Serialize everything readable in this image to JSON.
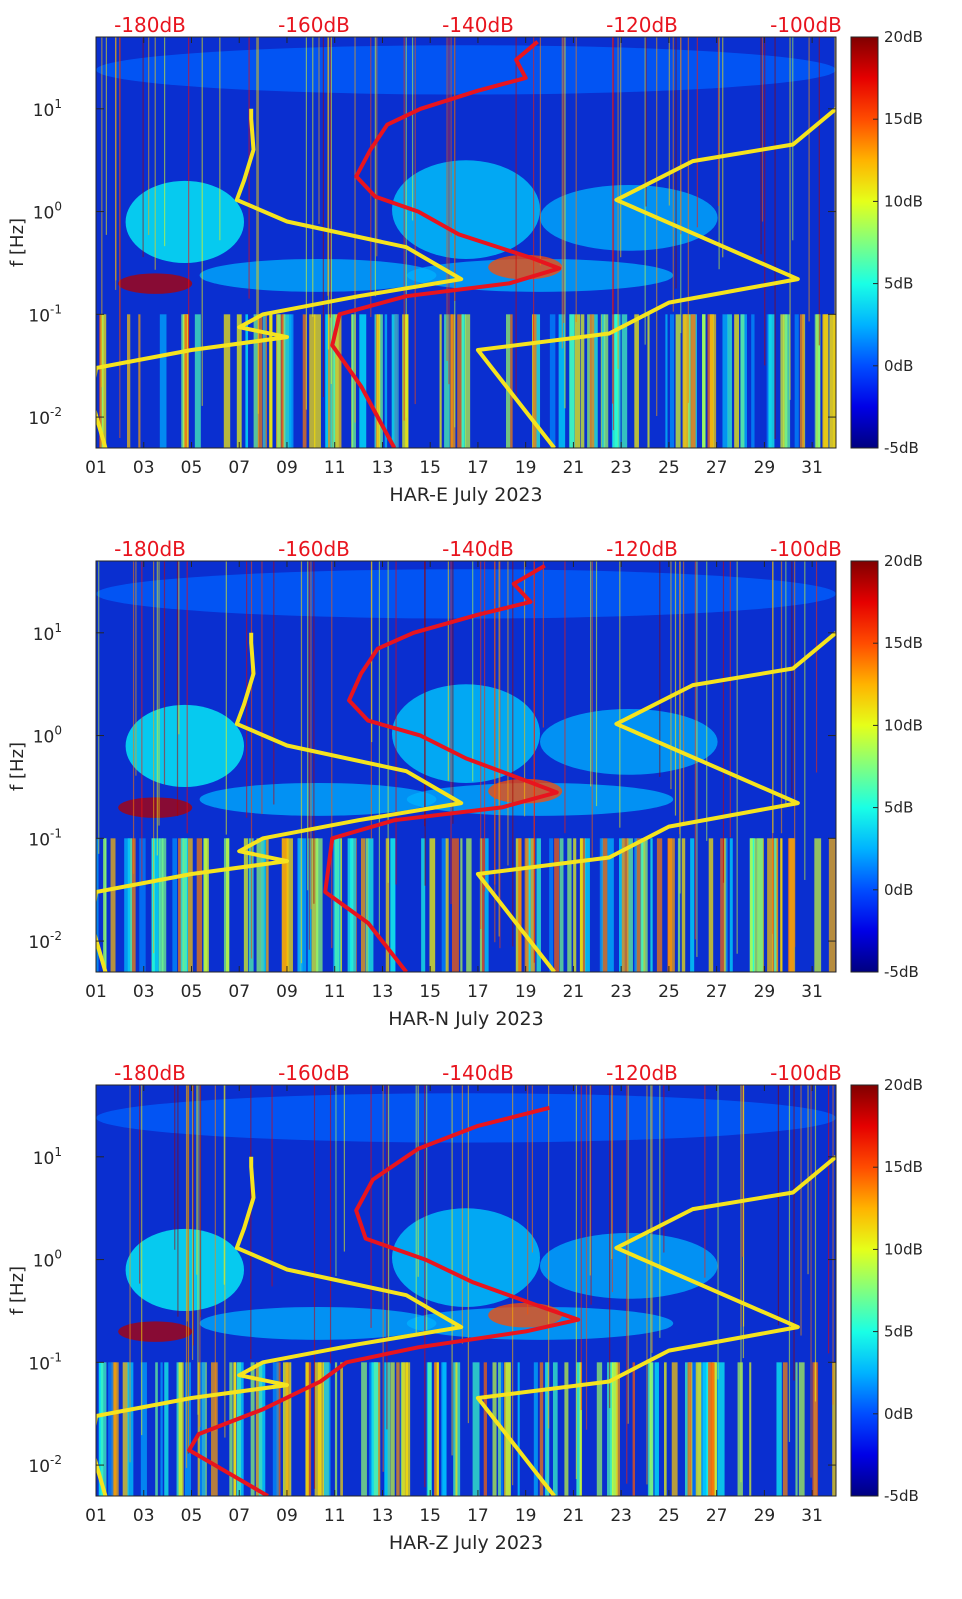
{
  "chart_data": [
    {
      "type": "heatmap",
      "title": "",
      "xlabel": "HAR-E July 2023",
      "ylabel": "f [Hz]",
      "x_ticks": [
        "01",
        "03",
        "05",
        "07",
        "09",
        "11",
        "13",
        "15",
        "17",
        "19",
        "21",
        "23",
        "25",
        "27",
        "29",
        "31"
      ],
      "x_tick_values": [
        1,
        3,
        5,
        7,
        9,
        11,
        13,
        15,
        17,
        19,
        21,
        23,
        25,
        27,
        29,
        31
      ],
      "xlim": [
        1,
        32
      ],
      "y_scale": "log",
      "ylim": [
        0.005,
        50
      ],
      "y_ticks": [
        {
          "base": "10",
          "exp": "-2",
          "value": 0.01
        },
        {
          "base": "10",
          "exp": "-1",
          "value": 0.1
        },
        {
          "base": "10",
          "exp": "0",
          "value": 1
        },
        {
          "base": "10",
          "exp": "1",
          "value": 10
        }
      ],
      "top_axis": {
        "labels": [
          "-180dB",
          "-160dB",
          "-140dB",
          "-120dB",
          "-100dB"
        ],
        "values": [
          -180,
          -160,
          -140,
          -120,
          -100
        ],
        "color": "#e8141e"
      },
      "colorbar": {
        "labels": [
          "20dB",
          "15dB",
          "10dB",
          "5dB",
          "0dB",
          "-5dB"
        ],
        "values": [
          20,
          15,
          10,
          5,
          0,
          -5
        ],
        "colormap": "jet"
      },
      "series": [
        {
          "color": "#f5e41e",
          "x": [
            7.5,
            7.5,
            7.6,
            7.2,
            6.9,
            9.0,
            14.0,
            16.3,
            12.0,
            8.0,
            7.0,
            9.0,
            5.0,
            1.0,
            0.8,
            1.4
          ],
          "y": [
            10,
            8,
            4,
            2,
            1.3,
            0.8,
            0.45,
            0.22,
            0.15,
            0.1,
            0.075,
            0.06,
            0.045,
            0.03,
            0.015,
            0.005
          ]
        },
        {
          "color": "#f5e41e",
          "x": [
            32,
            30.2,
            26,
            22.8,
            30.4,
            25,
            22.5,
            17,
            20.2
          ],
          "y": [
            10,
            4.5,
            3.1,
            1.3,
            0.22,
            0.13,
            0.065,
            0.045,
            0.005
          ]
        },
        {
          "color": "#e8141e",
          "x": [
            19.5,
            18.6,
            19,
            17,
            14.6,
            13.2,
            12.5,
            11.9,
            12.7,
            14.5,
            16.2,
            19.3,
            20.4,
            18.3,
            14.0,
            11.2,
            10.9,
            12.1,
            13.5
          ],
          "y": [
            45,
            30,
            20,
            15,
            10,
            7,
            4,
            2.2,
            1.4,
            1.0,
            0.6,
            0.35,
            0.28,
            0.2,
            0.15,
            0.1,
            0.05,
            0.02,
            0.005
          ]
        }
      ]
    },
    {
      "type": "heatmap",
      "title": "",
      "xlabel": "HAR-N July 2023",
      "ylabel": "f [Hz]",
      "x_ticks": [
        "01",
        "03",
        "05",
        "07",
        "09",
        "11",
        "13",
        "15",
        "17",
        "19",
        "21",
        "23",
        "25",
        "27",
        "29",
        "31"
      ],
      "x_tick_values": [
        1,
        3,
        5,
        7,
        9,
        11,
        13,
        15,
        17,
        19,
        21,
        23,
        25,
        27,
        29,
        31
      ],
      "xlim": [
        1,
        32
      ],
      "y_scale": "log",
      "ylim": [
        0.005,
        50
      ],
      "y_ticks": [
        {
          "base": "10",
          "exp": "-2",
          "value": 0.01
        },
        {
          "base": "10",
          "exp": "-1",
          "value": 0.1
        },
        {
          "base": "10",
          "exp": "0",
          "value": 1
        },
        {
          "base": "10",
          "exp": "1",
          "value": 10
        }
      ],
      "top_axis": {
        "labels": [
          "-180dB",
          "-160dB",
          "-140dB",
          "-120dB",
          "-100dB"
        ],
        "values": [
          -180,
          -160,
          -140,
          -120,
          -100
        ],
        "color": "#e8141e"
      },
      "colorbar": {
        "labels": [
          "20dB",
          "15dB",
          "10dB",
          "5dB",
          "0dB",
          "-5dB"
        ],
        "values": [
          20,
          15,
          10,
          5,
          0,
          -5
        ],
        "colormap": "jet"
      },
      "series": [
        {
          "color": "#f5e41e",
          "x": [
            7.5,
            7.5,
            7.6,
            7.2,
            6.9,
            9.0,
            14.0,
            16.3,
            12.0,
            8.0,
            7.0,
            9.0,
            5.0,
            1.0,
            0.8,
            1.4
          ],
          "y": [
            10,
            8,
            4,
            2,
            1.3,
            0.8,
            0.45,
            0.22,
            0.15,
            0.1,
            0.075,
            0.06,
            0.045,
            0.03,
            0.015,
            0.005
          ]
        },
        {
          "color": "#f5e41e",
          "x": [
            32,
            30.2,
            26,
            22.8,
            30.4,
            25,
            22.5,
            17,
            20.2
          ],
          "y": [
            10,
            4.5,
            3.1,
            1.3,
            0.22,
            0.13,
            0.065,
            0.045,
            0.005
          ]
        },
        {
          "color": "#e8141e",
          "x": [
            19.8,
            18.5,
            19.2,
            17,
            14.3,
            12.8,
            12.1,
            11.6,
            12.4,
            14.6,
            16.5,
            19.2,
            20.3,
            18.0,
            13.5,
            10.9,
            10.6,
            12.4,
            14.0
          ],
          "y": [
            45,
            30,
            20,
            15,
            10,
            7,
            4,
            2.2,
            1.4,
            1.0,
            0.6,
            0.35,
            0.28,
            0.2,
            0.15,
            0.1,
            0.03,
            0.015,
            0.005
          ]
        }
      ]
    },
    {
      "type": "heatmap",
      "title": "",
      "xlabel": "HAR-Z July 2023",
      "ylabel": "f [Hz]",
      "x_ticks": [
        "01",
        "03",
        "05",
        "07",
        "09",
        "11",
        "13",
        "15",
        "17",
        "19",
        "21",
        "23",
        "25",
        "27",
        "29",
        "31"
      ],
      "x_tick_values": [
        1,
        3,
        5,
        7,
        9,
        11,
        13,
        15,
        17,
        19,
        21,
        23,
        25,
        27,
        29,
        31
      ],
      "xlim": [
        1,
        32
      ],
      "y_scale": "log",
      "ylim": [
        0.005,
        50
      ],
      "y_ticks": [
        {
          "base": "10",
          "exp": "-2",
          "value": 0.01
        },
        {
          "base": "10",
          "exp": "-1",
          "value": 0.1
        },
        {
          "base": "10",
          "exp": "0",
          "value": 1
        },
        {
          "base": "10",
          "exp": "1",
          "value": 10
        }
      ],
      "top_axis": {
        "labels": [
          "-180dB",
          "-160dB",
          "-140dB",
          "-120dB",
          "-100dB"
        ],
        "values": [
          -180,
          -160,
          -140,
          -120,
          -100
        ],
        "color": "#e8141e"
      },
      "colorbar": {
        "labels": [
          "20dB",
          "15dB",
          "10dB",
          "5dB",
          "0dB",
          "-5dB"
        ],
        "values": [
          20,
          15,
          10,
          5,
          0,
          -5
        ],
        "colormap": "jet"
      },
      "series": [
        {
          "color": "#f5e41e",
          "x": [
            7.5,
            7.5,
            7.6,
            7.2,
            6.9,
            9.0,
            14.0,
            16.3,
            12.0,
            8.0,
            7.0,
            9.0,
            5.0,
            1.0,
            0.8,
            1.4
          ],
          "y": [
            10,
            8,
            4,
            2,
            1.3,
            0.8,
            0.45,
            0.22,
            0.15,
            0.1,
            0.075,
            0.06,
            0.045,
            0.03,
            0.015,
            0.005
          ]
        },
        {
          "color": "#f5e41e",
          "x": [
            32,
            30.2,
            26,
            22.8,
            30.4,
            25,
            22.5,
            17,
            20.2
          ],
          "y": [
            10,
            4.5,
            3.1,
            1.3,
            0.22,
            0.13,
            0.065,
            0.045,
            0.005
          ]
        },
        {
          "color": "#e8141e",
          "x": [
            20.0,
            17.0,
            14.5,
            12.6,
            11.9,
            12.3,
            14.8,
            16.8,
            19.6,
            21.2,
            19.0,
            14.5,
            11.5,
            10.4,
            8.0,
            5.3,
            4.9,
            8.2
          ],
          "y": [
            30,
            20,
            12,
            6,
            3,
            1.6,
            1.0,
            0.6,
            0.35,
            0.26,
            0.2,
            0.14,
            0.1,
            0.065,
            0.035,
            0.02,
            0.014,
            0.005
          ]
        }
      ]
    }
  ]
}
